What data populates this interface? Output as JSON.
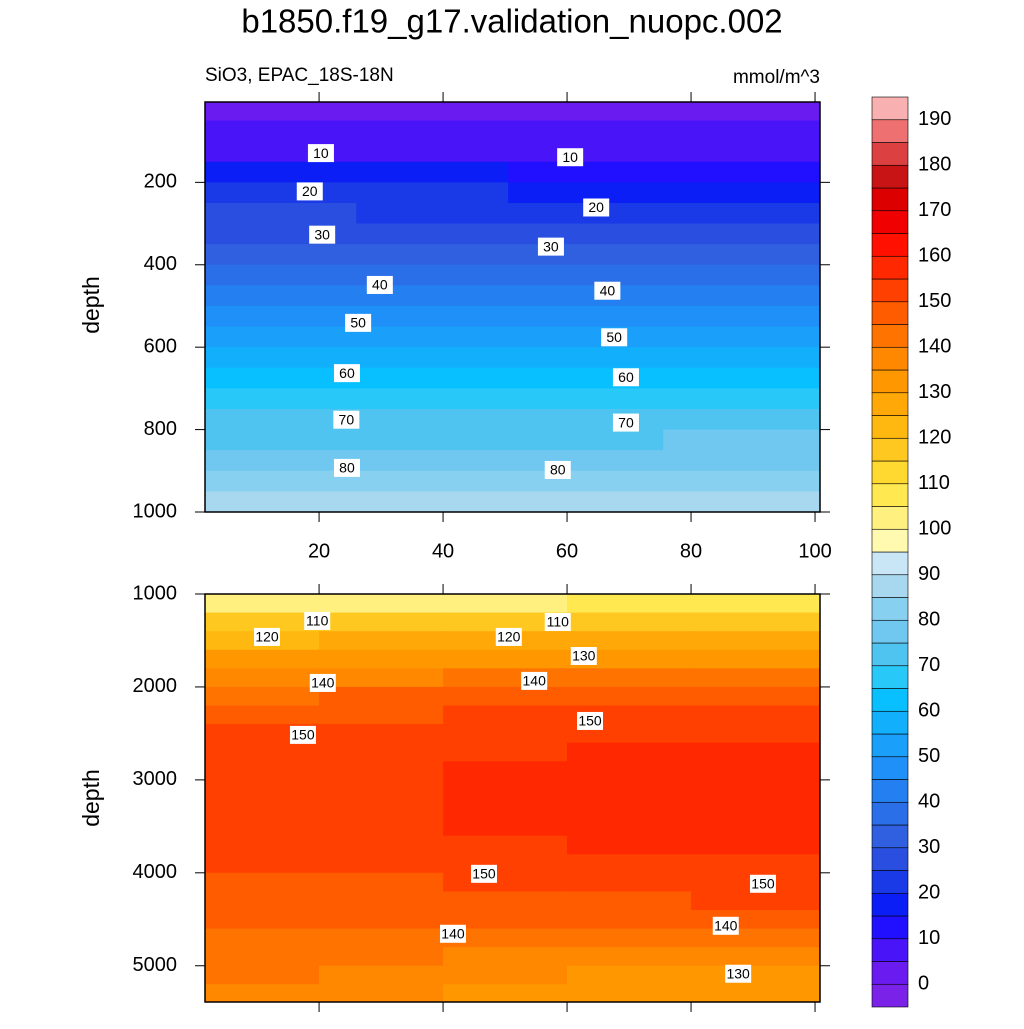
{
  "chart_data": [
    {
      "type": "contour",
      "title": "b1850.f19_g17.validation_nuopc.002",
      "subtitle": "SiO3, EPAC_18S-18N",
      "units": "mmol/m^3",
      "ylabel": "depth",
      "x": [
        14,
        38,
        63,
        88
      ],
      "xlim": [
        1.6,
        100.8
      ],
      "xticks": [
        20,
        40,
        60,
        80,
        100
      ],
      "y": [
        25,
        75,
        125,
        175,
        225,
        275,
        325,
        375,
        425,
        475,
        525,
        575,
        625,
        675,
        725,
        775,
        825,
        875,
        925,
        975
      ],
      "ylim": [
        5,
        1000
      ],
      "yticks": [
        200,
        400,
        600,
        800,
        1000
      ],
      "z": [
        [
          2,
          2,
          1,
          2
        ],
        [
          6,
          6,
          5,
          6
        ],
        [
          9,
          9,
          8,
          9
        ],
        [
          15,
          15,
          13,
          14
        ],
        [
          20,
          20,
          18,
          19
        ],
        [
          25,
          24,
          23,
          23
        ],
        [
          29,
          29,
          28,
          28
        ],
        [
          33,
          33,
          32,
          33
        ],
        [
          38,
          38,
          37,
          38
        ],
        [
          42,
          42,
          42,
          43
        ],
        [
          48,
          47,
          46,
          47
        ],
        [
          52,
          52,
          51,
          52
        ],
        [
          57,
          57,
          56,
          57
        ],
        [
          61,
          61,
          61,
          62
        ],
        [
          65,
          65,
          66,
          66
        ],
        [
          70,
          70,
          70,
          70
        ],
        [
          74,
          74,
          74,
          75
        ],
        [
          79,
          79,
          79,
          79
        ],
        [
          83,
          83,
          83,
          83
        ],
        [
          86,
          87,
          86,
          87
        ]
      ],
      "contour_labels": [
        {
          "value": 10,
          "x": 20.3,
          "y": 129
        },
        {
          "value": 10,
          "x": 60.5,
          "y": 139
        },
        {
          "value": 20,
          "x": 18.5,
          "y": 222
        },
        {
          "value": 20,
          "x": 64.7,
          "y": 261
        },
        {
          "value": 30,
          "x": 20.5,
          "y": 327
        },
        {
          "value": 30,
          "x": 57.4,
          "y": 356
        },
        {
          "value": 40,
          "x": 29.8,
          "y": 449
        },
        {
          "value": 40,
          "x": 66.5,
          "y": 463
        },
        {
          "value": 50,
          "x": 26.3,
          "y": 541
        },
        {
          "value": 50,
          "x": 67.6,
          "y": 576
        },
        {
          "value": 60,
          "x": 24.5,
          "y": 663
        },
        {
          "value": 60,
          "x": 69.5,
          "y": 673
        },
        {
          "value": 70,
          "x": 24.4,
          "y": 776
        },
        {
          "value": 70,
          "x": 69.5,
          "y": 783
        },
        {
          "value": 80,
          "x": 24.5,
          "y": 893
        },
        {
          "value": 80,
          "x": 58.5,
          "y": 898
        }
      ],
      "colorbar": {
        "levels": [
          0,
          5,
          10,
          15,
          20,
          25,
          30,
          35,
          40,
          45,
          50,
          55,
          60,
          65,
          70,
          75,
          80,
          85,
          90,
          95,
          100,
          105,
          110,
          115,
          120,
          125,
          130,
          135,
          140,
          145,
          150,
          155,
          160,
          165,
          170,
          175,
          180,
          185,
          190
        ],
        "ticks": [
          0,
          10,
          20,
          30,
          40,
          50,
          60,
          70,
          80,
          90,
          100,
          110,
          120,
          130,
          140,
          150,
          160,
          170,
          180,
          190
        ],
        "colors": [
          "#7b22e8",
          "#6a1cf0",
          "#4a14f8",
          "#2010ff",
          "#0a1ef5",
          "#1a3ae8",
          "#2a4fe0",
          "#3060e0",
          "#2a6ee8",
          "#2480f0",
          "#1e90f8",
          "#1aa0fa",
          "#12b0fc",
          "#08c0ff",
          "#28c8f8",
          "#50c4f0",
          "#70c8f0",
          "#88d0f0",
          "#a8d8f0",
          "#c8e6f6",
          "#fffab0",
          "#fff080",
          "#ffe850",
          "#ffd830",
          "#ffc820",
          "#ffb810",
          "#ffa808",
          "#ff9800",
          "#ff8800",
          "#ff7400",
          "#ff5c00",
          "#ff4000",
          "#ff2800",
          "#ff1000",
          "#f00000",
          "#dc0000",
          "#c81414",
          "#dc4040",
          "#ee7070",
          "#f8b0b0"
        ]
      }
    },
    {
      "type": "contour",
      "ylabel": "depth",
      "x": [
        10,
        30,
        50,
        70,
        90
      ],
      "xlim": [
        1.6,
        100.8
      ],
      "xticks": [
        20,
        40,
        60,
        80,
        100
      ],
      "y": [
        1100,
        1300,
        1500,
        1700,
        1900,
        2100,
        2300,
        2500,
        2700,
        2900,
        3100,
        3300,
        3500,
        3700,
        3900,
        4100,
        4300,
        4500,
        4700,
        4900,
        5100,
        5300
      ],
      "ylim": [
        1000,
        5390
      ],
      "yticks": [
        1000,
        2000,
        3000,
        4000,
        5000
      ],
      "z": [
        [
          103,
          104,
          104,
          105,
          105
        ],
        [
          117,
          118,
          118,
          119,
          119
        ],
        [
          124,
          125,
          126,
          127,
          127
        ],
        [
          131,
          132,
          133,
          134,
          134
        ],
        [
          138,
          139,
          140,
          141,
          141
        ],
        [
          144,
          145,
          146,
          147,
          147
        ],
        [
          148,
          149,
          150,
          151,
          151
        ],
        [
          150,
          151,
          152,
          153,
          153
        ],
        [
          151,
          152,
          154,
          156,
          156
        ],
        [
          152,
          153,
          155,
          157,
          158
        ],
        [
          152,
          153,
          156,
          158,
          158
        ],
        [
          152,
          153,
          156,
          158,
          158
        ],
        [
          152,
          153,
          155,
          157,
          158
        ],
        [
          151,
          152,
          154,
          156,
          156
        ],
        [
          150,
          151,
          152,
          153,
          154
        ],
        [
          148,
          149,
          150,
          151,
          152
        ],
        [
          147,
          147,
          148,
          149,
          150
        ],
        [
          145,
          145,
          145,
          146,
          146
        ],
        [
          143,
          142,
          142,
          142,
          142
        ],
        [
          141,
          140,
          139,
          138,
          138
        ],
        [
          140,
          138,
          136,
          134,
          134
        ],
        [
          139,
          137,
          133,
          132,
          131
        ]
      ],
      "contour_labels": [
        {
          "value": 110,
          "x": 19.7,
          "y": 1290
        },
        {
          "value": 110,
          "x": 58.5,
          "y": 1301
        },
        {
          "value": 120,
          "x": 11.6,
          "y": 1462
        },
        {
          "value": 120,
          "x": 50.6,
          "y": 1462
        },
        {
          "value": 130,
          "x": 62.7,
          "y": 1667
        },
        {
          "value": 140,
          "x": 20.6,
          "y": 1957
        },
        {
          "value": 140,
          "x": 54.7,
          "y": 1935
        },
        {
          "value": 150,
          "x": 17.4,
          "y": 2516
        },
        {
          "value": 150,
          "x": 63.7,
          "y": 2366
        },
        {
          "value": 150,
          "x": 46.6,
          "y": 4011
        },
        {
          "value": 150,
          "x": 91.6,
          "y": 4118
        },
        {
          "value": 140,
          "x": 41.6,
          "y": 4656
        },
        {
          "value": 140,
          "x": 85.6,
          "y": 4570
        },
        {
          "value": 130,
          "x": 87.6,
          "y": 5086
        }
      ]
    }
  ]
}
